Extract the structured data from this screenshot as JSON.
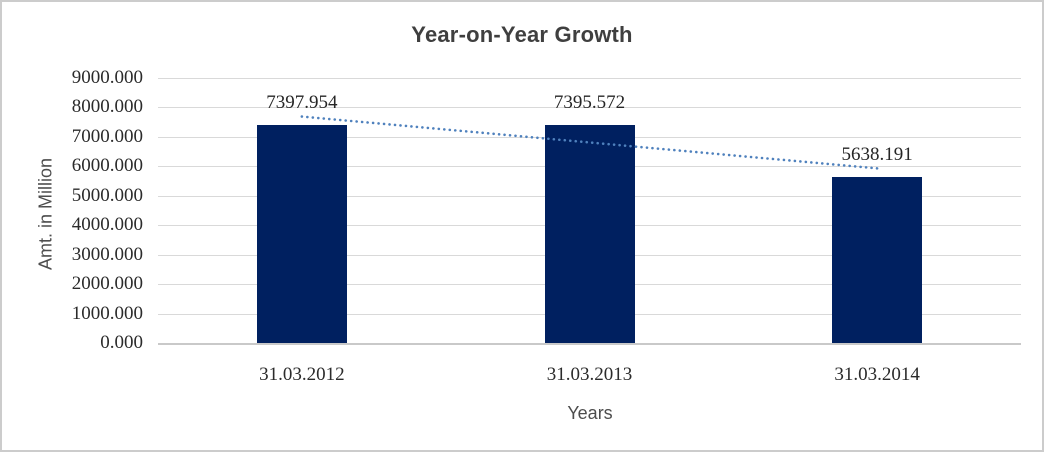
{
  "chart_data": {
    "type": "bar",
    "title": "Year-on-Year Growth",
    "xlabel": "Years",
    "ylabel": "Amt. in Million",
    "categories": [
      "31.03.2012",
      "31.03.2013",
      "31.03.2014"
    ],
    "values": [
      7397.954,
      7395.572,
      5638.191
    ],
    "data_labels": [
      "7397.954",
      "7395.572",
      "5638.191"
    ],
    "ylim": [
      0,
      9000
    ],
    "ytick_step": 1000,
    "ytick_labels": [
      "0.000",
      "1000.000",
      "2000.000",
      "3000.000",
      "4000.000",
      "5000.000",
      "6000.000",
      "7000.000",
      "8000.000",
      "9000.000"
    ],
    "grid": true,
    "legend": "none",
    "bar_color": "#002060",
    "trendline": {
      "type": "linear",
      "style": "dotted",
      "color": "#4f81bd",
      "start_value": 7690.5,
      "end_value": 5930.7,
      "spans_categories": [
        "31.03.2012",
        "31.03.2014"
      ]
    }
  }
}
